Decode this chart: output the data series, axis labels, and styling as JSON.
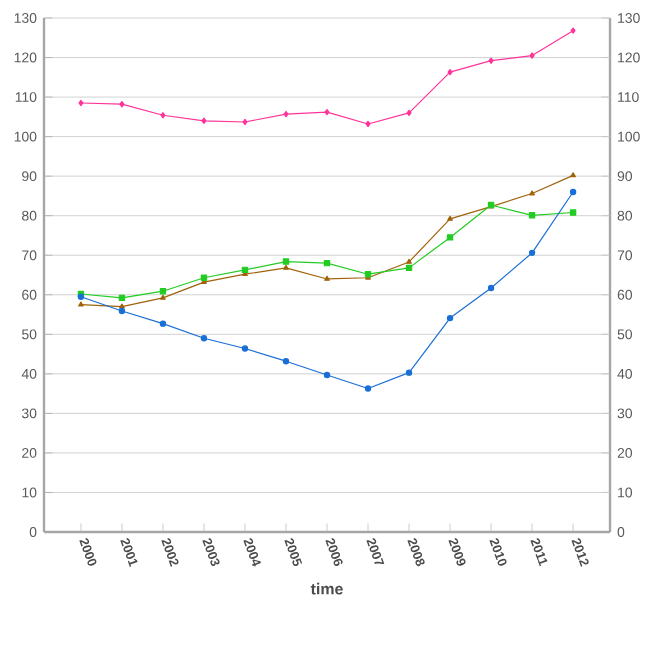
{
  "chart_data": {
    "type": "line",
    "xlabel": "time",
    "categories": [
      "2000",
      "2001",
      "2002",
      "2003",
      "2004",
      "2005",
      "2006",
      "2007",
      "2008",
      "2009",
      "2010",
      "2011",
      "2012"
    ],
    "series": [
      {
        "color": "#ff3399",
        "marker": "diamond",
        "values": [
          108.5,
          108.2,
          105.4,
          104,
          103.7,
          105.7,
          106.2,
          103.2,
          106,
          116.3,
          119.2,
          120.5,
          126.8
        ]
      },
      {
        "color": "#a0620a",
        "marker": "triangle",
        "values": [
          57.5,
          57,
          59.2,
          63.2,
          65.2,
          66.8,
          64,
          64.3,
          68.3,
          79.2,
          82.3,
          85.6,
          90.2
        ]
      },
      {
        "color": "#22cc22",
        "marker": "square",
        "values": [
          60.2,
          59.2,
          60.9,
          64.3,
          66.3,
          68.4,
          68,
          65.2,
          66.8,
          74.5,
          82.7,
          80.1,
          80.8
        ]
      },
      {
        "color": "#1a6fd6",
        "marker": "circle",
        "values": [
          59.5,
          55.9,
          52.7,
          49,
          46.4,
          43.2,
          39.7,
          36.3,
          40.3,
          54.1,
          61.7,
          70.6,
          86
        ]
      }
    ],
    "ylim": [
      0,
      130
    ],
    "yticks": [
      0,
      10,
      20,
      30,
      40,
      50,
      60,
      70,
      80,
      90,
      100,
      110,
      120,
      130
    ],
    "y2lim": [
      0,
      130
    ],
    "y2ticks": [
      0,
      10,
      20,
      30,
      40,
      50,
      60,
      70,
      80,
      90,
      100,
      110,
      120,
      130
    ],
    "grid": "y",
    "line_style": "solid"
  }
}
